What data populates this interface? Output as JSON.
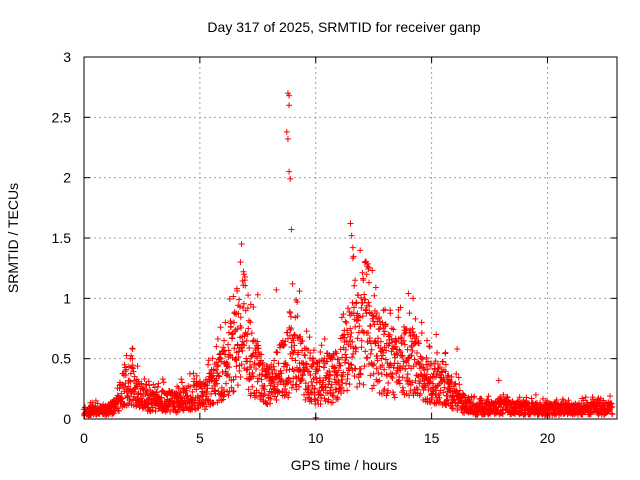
{
  "colors": {
    "marker": "#ff0000",
    "grid": "#a0a0a0",
    "axis": "#000000",
    "background": "#ffffff"
  },
  "chart_data": {
    "type": "scatter",
    "title": "Day 317 of 2025, SRMTID for receiver ganp",
    "xlabel": "GPS time / hours",
    "ylabel": "SRMTID / TECUs",
    "xlim": [
      0,
      23
    ],
    "ylim": [
      0,
      3
    ],
    "grid": true,
    "marker": "+",
    "x_ticks": [
      0,
      5,
      10,
      15,
      20
    ],
    "y_ticks": [
      0,
      0.5,
      1,
      1.5,
      2,
      2.5,
      3
    ],
    "x_tick_labels": [
      "0",
      "5",
      "10",
      "15",
      "20"
    ],
    "y_tick_labels": [
      "0",
      "0.5",
      "1",
      "1.5",
      "2",
      "2.5",
      "3"
    ],
    "profile": [
      [
        0.0,
        0.06
      ],
      [
        0.5,
        0.08
      ],
      [
        1.0,
        0.09
      ],
      [
        1.4,
        0.12
      ],
      [
        1.7,
        0.28
      ],
      [
        2.0,
        0.35
      ],
      [
        2.4,
        0.2
      ],
      [
        3.0,
        0.15
      ],
      [
        3.5,
        0.17
      ],
      [
        4.0,
        0.15
      ],
      [
        4.6,
        0.2
      ],
      [
        5.2,
        0.22
      ],
      [
        5.7,
        0.35
      ],
      [
        6.2,
        0.5
      ],
      [
        6.7,
        0.75
      ],
      [
        7.2,
        0.55
      ],
      [
        7.6,
        0.4
      ],
      [
        8.0,
        0.3
      ],
      [
        8.5,
        0.45
      ],
      [
        9.0,
        0.55
      ],
      [
        9.5,
        0.45
      ],
      [
        10.0,
        0.35
      ],
      [
        10.5,
        0.35
      ],
      [
        11.0,
        0.4
      ],
      [
        11.5,
        0.7
      ],
      [
        12.0,
        0.75
      ],
      [
        12.5,
        0.65
      ],
      [
        13.0,
        0.55
      ],
      [
        13.5,
        0.5
      ],
      [
        14.0,
        0.55
      ],
      [
        14.5,
        0.45
      ],
      [
        15.0,
        0.35
      ],
      [
        15.5,
        0.3
      ],
      [
        16.0,
        0.22
      ],
      [
        16.5,
        0.12
      ],
      [
        17.0,
        0.09
      ],
      [
        18.0,
        0.11
      ],
      [
        19.0,
        0.1
      ],
      [
        20.0,
        0.09
      ],
      [
        21.0,
        0.09
      ],
      [
        22.0,
        0.1
      ],
      [
        22.8,
        0.09
      ]
    ],
    "spikes": [
      [
        1.75,
        0.45
      ],
      [
        2.1,
        0.58
      ],
      [
        2.0,
        0.5
      ],
      [
        6.1,
        0.8
      ],
      [
        6.6,
        1.08
      ],
      [
        6.75,
        1.3
      ],
      [
        6.8,
        1.45
      ],
      [
        6.9,
        1.2
      ],
      [
        7.2,
        0.95
      ],
      [
        7.5,
        1.03
      ],
      [
        8.3,
        1.07
      ],
      [
        8.75,
        2.38
      ],
      [
        8.8,
        2.7
      ],
      [
        8.85,
        2.68
      ],
      [
        8.85,
        2.6
      ],
      [
        8.8,
        2.32
      ],
      [
        8.85,
        2.05
      ],
      [
        8.9,
        1.99
      ],
      [
        8.95,
        1.57
      ],
      [
        9.0,
        1.12
      ],
      [
        9.2,
        0.97
      ],
      [
        9.3,
        1.06
      ],
      [
        10.0,
        0.01
      ],
      [
        11.5,
        1.62
      ],
      [
        11.55,
        1.52
      ],
      [
        11.6,
        1.42
      ],
      [
        11.7,
        1.15
      ],
      [
        12.2,
        1.2
      ],
      [
        12.3,
        1.13
      ],
      [
        14.0,
        1.04
      ],
      [
        14.2,
        1.0
      ],
      [
        14.3,
        0.83
      ],
      [
        14.8,
        0.65
      ],
      [
        15.2,
        0.7
      ],
      [
        15.6,
        0.55
      ],
      [
        16.1,
        0.58
      ],
      [
        17.9,
        0.32
      ],
      [
        18.8,
        0.18
      ],
      [
        19.5,
        0.2
      ],
      [
        20.7,
        0.15
      ],
      [
        22.7,
        0.19
      ],
      [
        4.2,
        0.33
      ],
      [
        3.4,
        0.33
      ]
    ],
    "scatter_points": 2400
  }
}
